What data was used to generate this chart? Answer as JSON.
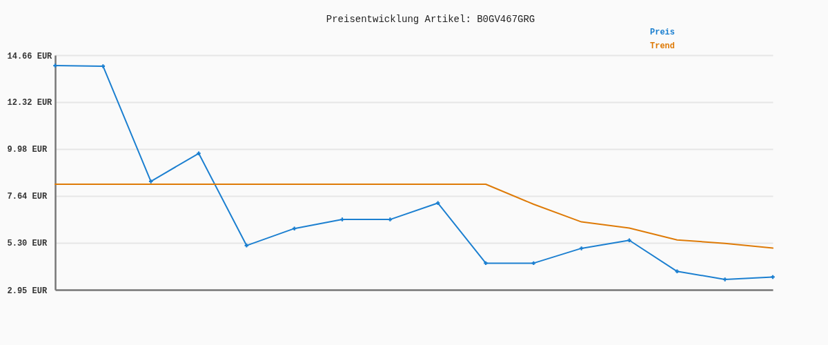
{
  "chart_data": {
    "type": "line",
    "title": "Preisentwicklung Artikel: B0GV467GRG",
    "categories": [
      null,
      null,
      null,
      null,
      null,
      null,
      null,
      null,
      null,
      null,
      null,
      null,
      null,
      null,
      null,
      null
    ],
    "series": [
      {
        "name": "Preis",
        "color": "#1b7fd0",
        "marker": "cross",
        "values": [
          14.14,
          14.11,
          8.36,
          9.76,
          5.16,
          6.01,
          6.46,
          6.46,
          7.28,
          4.28,
          4.28,
          5.02,
          5.42,
          3.87,
          3.47,
          3.59
        ]
      },
      {
        "name": "Trend",
        "color": "#de7a06",
        "values": [
          8.22,
          8.22,
          8.22,
          8.22,
          8.22,
          8.22,
          8.22,
          8.22,
          8.22,
          8.22,
          7.22,
          6.34,
          6.03,
          5.44,
          5.27,
          5.03
        ]
      }
    ],
    "ylim": [
      2.95,
      14.66
    ],
    "yticks": [
      {
        "value": 2.95,
        "label": "2.95 EUR"
      },
      {
        "value": 5.3,
        "label": "5.30 EUR"
      },
      {
        "value": 7.64,
        "label": "7.64 EUR"
      },
      {
        "value": 9.98,
        "label": "9.98 EUR"
      },
      {
        "value": 12.32,
        "label": "12.32 EUR"
      },
      {
        "value": 14.66,
        "label": "14.66 EUR"
      }
    ],
    "grid": "y",
    "legend": "top right",
    "tick_labels": "y"
  }
}
